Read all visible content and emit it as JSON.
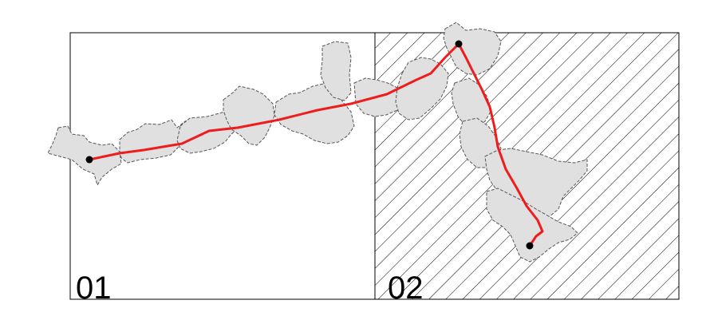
{
  "panels": [
    {
      "id": "left",
      "label": "01",
      "hatched": false
    },
    {
      "id": "right",
      "label": "02",
      "hatched": true
    }
  ],
  "colors": {
    "route": "#ee1c1c",
    "region_fill": "#e0e0e0",
    "region_stroke": "#555555",
    "frame": "#000000",
    "hatch": "#000000",
    "point": "#000000"
  },
  "route": {
    "start_point": "route-start-point",
    "waypoint": "route-turn-point",
    "end_point": "route-end-point"
  }
}
